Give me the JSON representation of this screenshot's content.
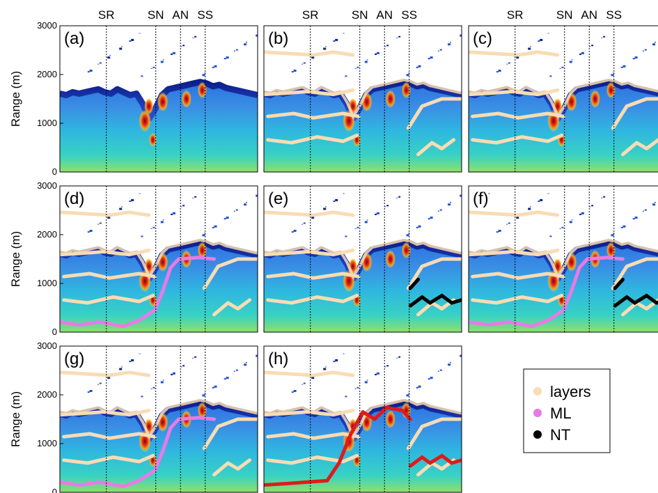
{
  "chart_data": {
    "type": "heatmap",
    "ylabel": "Range (m)",
    "yticks": [
      "0",
      "1000",
      "2000",
      "3000"
    ],
    "ylim": [
      0,
      3000
    ],
    "time_markers": [
      "SR",
      "SN",
      "AN",
      "SS"
    ],
    "panels": [
      {
        "label": "(a)",
        "layers": false,
        "ml": false,
        "nt": false,
        "nt_red": false
      },
      {
        "label": "(b)",
        "layers": true,
        "ml": false,
        "nt": false,
        "nt_red": false
      },
      {
        "label": "(c)",
        "layers": true,
        "ml": false,
        "nt": false,
        "nt_red": false
      },
      {
        "label": "(d)",
        "layers": true,
        "ml": true,
        "nt": false,
        "nt_red": false
      },
      {
        "label": "(e)",
        "layers": true,
        "ml": false,
        "nt": true,
        "nt_red": false
      },
      {
        "label": "(f)",
        "layers": true,
        "ml": true,
        "nt": true,
        "nt_red": false
      },
      {
        "label": "(g)",
        "layers": true,
        "ml": true,
        "nt": false,
        "nt_red": false
      },
      {
        "label": "(h)",
        "layers": true,
        "ml": false,
        "nt": false,
        "nt_red": true
      }
    ],
    "legend": [
      {
        "name": "layers",
        "color": "#f8dcb4"
      },
      {
        "name": "ML",
        "color": "#e87ae6"
      },
      {
        "name": "NT",
        "color": "#000000"
      }
    ]
  },
  "colors": {
    "bg_low": "#2fd0c8",
    "bg_mid": "#34a8e0",
    "top_band": "#1a2a9a",
    "red_track": "#e01a1a"
  }
}
